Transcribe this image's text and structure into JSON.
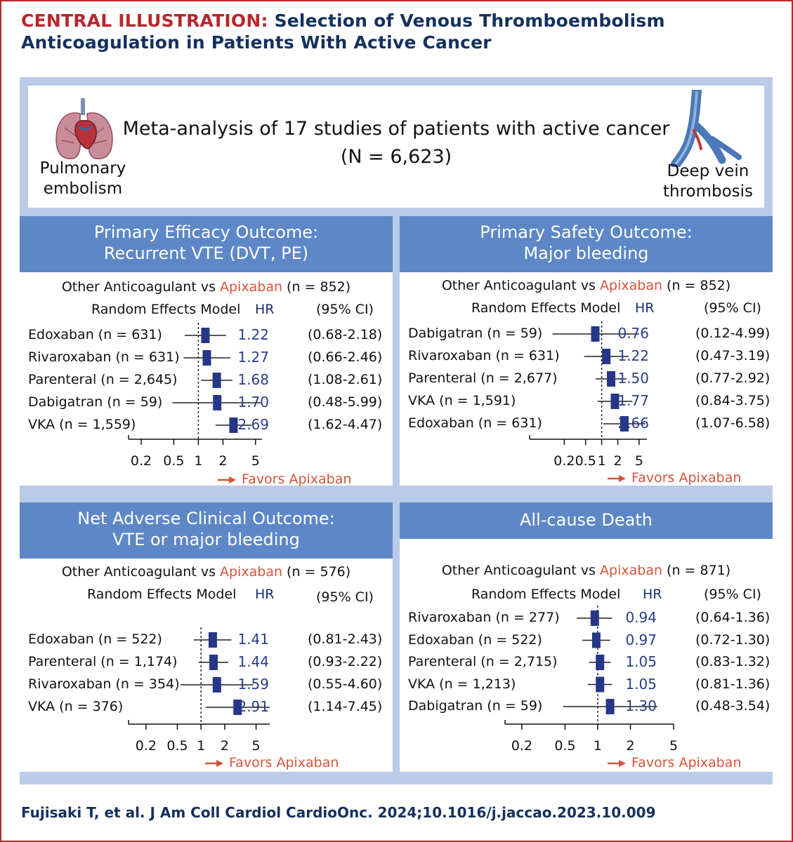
{
  "header": {
    "label": "CENTRAL ILLUSTRATION:",
    "title_line1": "Selection of Venous Thromboembolism",
    "title_line2": "Anticoagulation in Patients With Active Cancer"
  },
  "intro": {
    "title": "Meta-analysis of 17 studies of patients with active cancer",
    "n": "(N = 6,623)",
    "left_icon": "lungs-heart-icon",
    "left_label_line1": "Pulmonary",
    "left_label_line2": "embolism",
    "right_icon": "vein-icon",
    "right_label_line1": "Deep vein",
    "right_label_line2": "thrombosis"
  },
  "colors": {
    "frame": "#b7272d",
    "title": "#14305e",
    "panel_bg": "#b9cbe8",
    "header_band": "#5d87c7",
    "marker": "#263787",
    "hr_text": "#2a3d8a",
    "apixaban": "#d4543a"
  },
  "chart_data": [
    {
      "type": "forest",
      "title_line1": "Primary Efficacy Outcome:",
      "title_line2": "Recurrent VTE (DVT, PE)",
      "comparison_prefix": "Other Anticoagulant vs ",
      "comparison_drug": "Apixaban",
      "comparison_n": " (n = 852)",
      "model_label": "Random Effects Model",
      "hr_header": "HR",
      "ci_header": "(95% CI)",
      "x_scale": "log",
      "ticks": [
        "0.2",
        "0.5",
        "1",
        "2",
        "5"
      ],
      "tick_values": [
        0.2,
        0.5,
        1,
        2,
        5
      ],
      "favors": "Favors Apixaban",
      "rows": [
        {
          "label": "Edoxaban (n = 631)",
          "hr": 1.22,
          "hr_text": "1.22",
          "lo": 0.68,
          "hi": 2.18,
          "ci": "(0.68-2.18)"
        },
        {
          "label": "Rivaroxaban (n = 631)",
          "hr": 1.27,
          "hr_text": "1.27",
          "lo": 0.66,
          "hi": 2.46,
          "ci": "(0.66-2.46)"
        },
        {
          "label": "Parenteral (n = 2,645)",
          "hr": 1.68,
          "hr_text": "1.68",
          "lo": 1.08,
          "hi": 2.61,
          "ci": "(1.08-2.61)"
        },
        {
          "label": "Dabigatran (n = 59)",
          "hr": 1.7,
          "hr_text": "1.70",
          "lo": 0.48,
          "hi": 5.99,
          "ci": "(0.48-5.99)"
        },
        {
          "label": "VKA (n = 1,559)",
          "hr": 2.69,
          "hr_text": "2.69",
          "lo": 1.62,
          "hi": 4.47,
          "ci": "(1.62-4.47)"
        }
      ]
    },
    {
      "type": "forest",
      "title_line1": "Primary Safety Outcome:",
      "title_line2": "Major bleeding",
      "comparison_prefix": "Other Anticoagulant vs ",
      "comparison_drug": "Apixaban",
      "comparison_n": " (n = 852)",
      "model_label": "Random Effects Model",
      "hr_header": "HR",
      "ci_header": "(95% CI)",
      "x_scale": "log",
      "ticks": [
        "0.2",
        "0.5",
        "1",
        "2",
        "5"
      ],
      "tick_values": [
        0.2,
        0.5,
        1,
        2,
        5
      ],
      "favors": "Favors Apixaban",
      "rows": [
        {
          "label": "Dabigatran (n = 59)",
          "hr": 0.76,
          "hr_text": "0.76",
          "lo": 0.12,
          "hi": 4.99,
          "ci": "(0.12-4.99)"
        },
        {
          "label": "Rivaroxaban (n = 631)",
          "hr": 1.22,
          "hr_text": "1.22",
          "lo": 0.47,
          "hi": 3.19,
          "ci": "(0.47-3.19)"
        },
        {
          "label": "Parenteral (n = 2,677)",
          "hr": 1.5,
          "hr_text": "1.50",
          "lo": 0.77,
          "hi": 2.92,
          "ci": "(0.77-2.92)"
        },
        {
          "label": "VKA (n = 1,591)",
          "hr": 1.77,
          "hr_text": "1.77",
          "lo": 0.84,
          "hi": 3.75,
          "ci": "(0.84-3.75)"
        },
        {
          "label": "Edoxaban (n = 631)",
          "hr": 2.66,
          "hr_text": "2.66",
          "lo": 1.07,
          "hi": 6.58,
          "ci": "(1.07-6.58)"
        }
      ]
    },
    {
      "type": "forest",
      "title_line1": "Net Adverse Clinical Outcome:",
      "title_line2": "VTE or major bleeding",
      "comparison_prefix": "Other Anticoagulant vs ",
      "comparison_drug": "Apixaban",
      "comparison_n": " (n = 576)",
      "model_label": "Random Effects Model",
      "hr_header": "HR",
      "ci_header": "(95% CI)",
      "x_scale": "log",
      "ticks": [
        "0.2",
        "0.5",
        "1",
        "2",
        "5"
      ],
      "tick_values": [
        0.2,
        0.5,
        1,
        2,
        5
      ],
      "favors": "Favors Apixaban",
      "rows": [
        {
          "label": "Edoxaban (n = 522)",
          "hr": 1.41,
          "hr_text": "1.41",
          "lo": 0.81,
          "hi": 2.43,
          "ci": "(0.81-2.43)"
        },
        {
          "label": "Parenteral (n = 1,174)",
          "hr": 1.44,
          "hr_text": "1.44",
          "lo": 0.93,
          "hi": 2.22,
          "ci": "(0.93-2.22)"
        },
        {
          "label": "Rivaroxaban (n = 354)",
          "hr": 1.59,
          "hr_text": "1.59",
          "lo": 0.55,
          "hi": 4.6,
          "ci": "(0.55-4.60)"
        },
        {
          "label": "VKA (n = 376)",
          "hr": 2.91,
          "hr_text": "2.91",
          "lo": 1.14,
          "hi": 7.45,
          "ci": "(1.14-7.45)"
        }
      ]
    },
    {
      "type": "forest",
      "title_line1": "All-cause Death",
      "title_line2": "",
      "comparison_prefix": "Other Anticoagulant vs ",
      "comparison_drug": "Apixaban",
      "comparison_n": " (n = 871)",
      "model_label": "Random Effects Model",
      "hr_header": "HR",
      "ci_header": "(95% CI)",
      "x_scale": "log",
      "ticks": [
        "0.2",
        "0.5",
        "1",
        "2",
        "5"
      ],
      "tick_values": [
        0.2,
        0.5,
        1,
        2,
        5
      ],
      "favors": "Favors Apixaban",
      "rows": [
        {
          "label": "Rivaroxaban (n = 277)",
          "hr": 0.94,
          "hr_text": "0.94",
          "lo": 0.64,
          "hi": 1.36,
          "ci": "(0.64-1.36)"
        },
        {
          "label": "Edoxaban (n = 522)",
          "hr": 0.97,
          "hr_text": "0.97",
          "lo": 0.72,
          "hi": 1.3,
          "ci": "(0.72-1.30)"
        },
        {
          "label": "Parenteral (n = 2,715)",
          "hr": 1.05,
          "hr_text": "1.05",
          "lo": 0.83,
          "hi": 1.32,
          "ci": "(0.83-1.32)"
        },
        {
          "label": "VKA (n = 1,213)",
          "hr": 1.05,
          "hr_text": "1.05",
          "lo": 0.81,
          "hi": 1.36,
          "ci": "(0.81-1.36)"
        },
        {
          "label": "Dabigatran (n = 59)",
          "hr": 1.3,
          "hr_text": "1.30",
          "lo": 0.48,
          "hi": 3.54,
          "ci": "(0.48-3.54)"
        }
      ]
    }
  ],
  "citation": "Fujisaki T, et al. J Am Coll Cardiol CardioOnc. 2024;10.1016/j.jaccao.2023.10.009"
}
